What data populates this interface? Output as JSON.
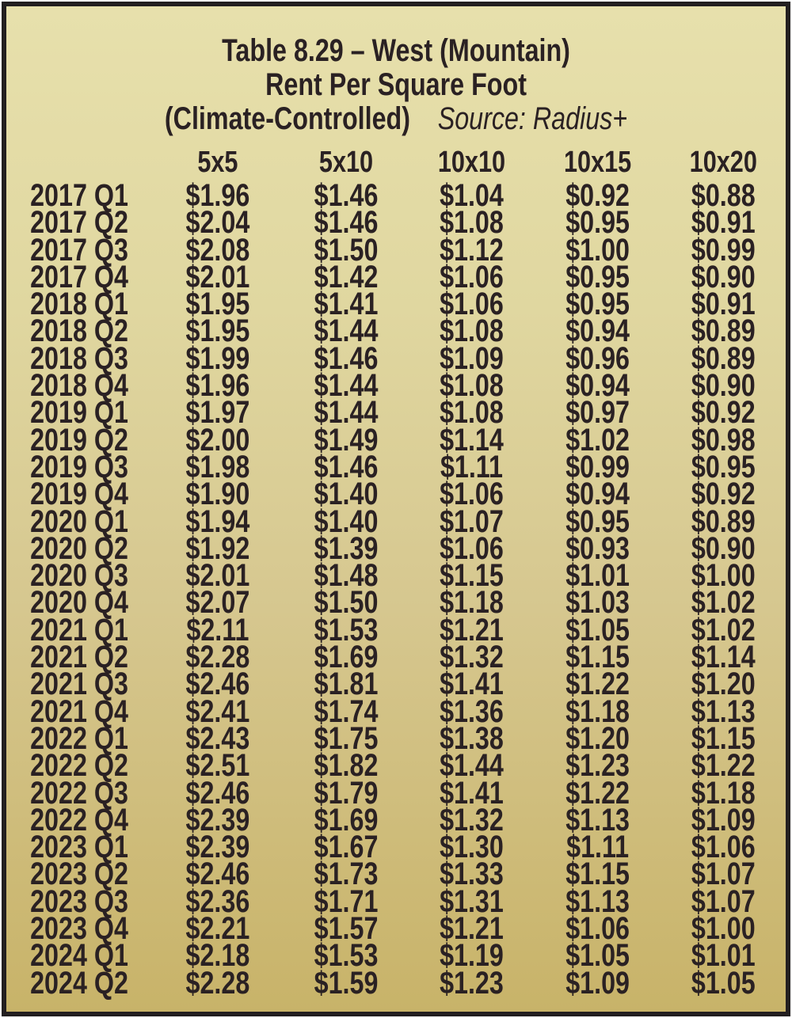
{
  "colors": {
    "background_top": "#e7e0ac",
    "background_bottom": "#c8b369",
    "border": "#231f20",
    "text": "#2a2123"
  },
  "chart_data": {
    "type": "table",
    "title_line1": "Table 8.29 – West (Mountain)",
    "title_line2": "Rent Per Square Foot",
    "title_line3": "(Climate-Controlled)",
    "source": "Source: Radius+",
    "columns": [
      "5x5",
      "5x10",
      "10x10",
      "10x15",
      "10x20"
    ],
    "rows": [
      {
        "label": "2017 Q1",
        "values": [
          "$1.96",
          "$1.46",
          "$1.04",
          "$0.92",
          "$0.88"
        ]
      },
      {
        "label": "2017 Q2",
        "values": [
          "$2.04",
          "$1.46",
          "$1.08",
          "$0.95",
          "$0.91"
        ]
      },
      {
        "label": "2017 Q3",
        "values": [
          "$2.08",
          "$1.50",
          "$1.12",
          "$1.00",
          "$0.99"
        ]
      },
      {
        "label": "2017 Q4",
        "values": [
          "$2.01",
          "$1.42",
          "$1.06",
          "$0.95",
          "$0.90"
        ]
      },
      {
        "label": "2018 Q1",
        "values": [
          "$1.95",
          "$1.41",
          "$1.06",
          "$0.95",
          "$0.91"
        ]
      },
      {
        "label": "2018 Q2",
        "values": [
          "$1.95",
          "$1.44",
          "$1.08",
          "$0.94",
          "$0.89"
        ]
      },
      {
        "label": "2018 Q3",
        "values": [
          "$1.99",
          "$1.46",
          "$1.09",
          "$0.96",
          "$0.89"
        ]
      },
      {
        "label": "2018 Q4",
        "values": [
          "$1.96",
          "$1.44",
          "$1.08",
          "$0.94",
          "$0.90"
        ]
      },
      {
        "label": "2019 Q1",
        "values": [
          "$1.97",
          "$1.44",
          "$1.08",
          "$0.97",
          "$0.92"
        ]
      },
      {
        "label": "2019 Q2",
        "values": [
          "$2.00",
          "$1.49",
          "$1.14",
          "$1.02",
          "$0.98"
        ]
      },
      {
        "label": "2019 Q3",
        "values": [
          "$1.98",
          "$1.46",
          "$1.11",
          "$0.99",
          "$0.95"
        ]
      },
      {
        "label": "2019 Q4",
        "values": [
          "$1.90",
          "$1.40",
          "$1.06",
          "$0.94",
          "$0.92"
        ]
      },
      {
        "label": "2020 Q1",
        "values": [
          "$1.94",
          "$1.40",
          "$1.07",
          "$0.95",
          "$0.89"
        ]
      },
      {
        "label": "2020 Q2",
        "values": [
          "$1.92",
          "$1.39",
          "$1.06",
          "$0.93",
          "$0.90"
        ]
      },
      {
        "label": "2020 Q3",
        "values": [
          "$2.01",
          "$1.48",
          "$1.15",
          "$1.01",
          "$1.00"
        ]
      },
      {
        "label": "2020 Q4",
        "values": [
          "$2.07",
          "$1.50",
          "$1.18",
          "$1.03",
          "$1.02"
        ]
      },
      {
        "label": "2021 Q1",
        "values": [
          "$2.11",
          "$1.53",
          "$1.21",
          "$1.05",
          "$1.02"
        ]
      },
      {
        "label": "2021 Q2",
        "values": [
          "$2.28",
          "$1.69",
          "$1.32",
          "$1.15",
          "$1.14"
        ]
      },
      {
        "label": "2021 Q3",
        "values": [
          "$2.46",
          "$1.81",
          "$1.41",
          "$1.22",
          "$1.20"
        ]
      },
      {
        "label": "2021 Q4",
        "values": [
          "$2.41",
          "$1.74",
          "$1.36",
          "$1.18",
          "$1.13"
        ]
      },
      {
        "label": "2022 Q1",
        "values": [
          "$2.43",
          "$1.75",
          "$1.38",
          "$1.20",
          "$1.15"
        ]
      },
      {
        "label": "2022 Q2",
        "values": [
          "$2.51",
          "$1.82",
          "$1.44",
          "$1.23",
          "$1.22"
        ]
      },
      {
        "label": "2022 Q3",
        "values": [
          "$2.46",
          "$1.79",
          "$1.41",
          "$1.22",
          "$1.18"
        ]
      },
      {
        "label": "2022 Q4",
        "values": [
          "$2.39",
          "$1.69",
          "$1.32",
          "$1.13",
          "$1.09"
        ]
      },
      {
        "label": "2023 Q1",
        "values": [
          "$2.39",
          "$1.67",
          "$1.30",
          "$1.11",
          "$1.06"
        ]
      },
      {
        "label": "2023 Q2",
        "values": [
          "$2.46",
          "$1.73",
          "$1.33",
          "$1.15",
          "$1.07"
        ]
      },
      {
        "label": "2023 Q3",
        "values": [
          "$2.36",
          "$1.71",
          "$1.31",
          "$1.13",
          "$1.07"
        ]
      },
      {
        "label": "2023 Q4",
        "values": [
          "$2.21",
          "$1.57",
          "$1.21",
          "$1.06",
          "$1.00"
        ]
      },
      {
        "label": "2024 Q1",
        "values": [
          "$2.18",
          "$1.53",
          "$1.19",
          "$1.05",
          "$1.01"
        ]
      },
      {
        "label": "2024 Q2",
        "values": [
          "$2.28",
          "$1.59",
          "$1.23",
          "$1.09",
          "$1.05"
        ]
      }
    ]
  }
}
